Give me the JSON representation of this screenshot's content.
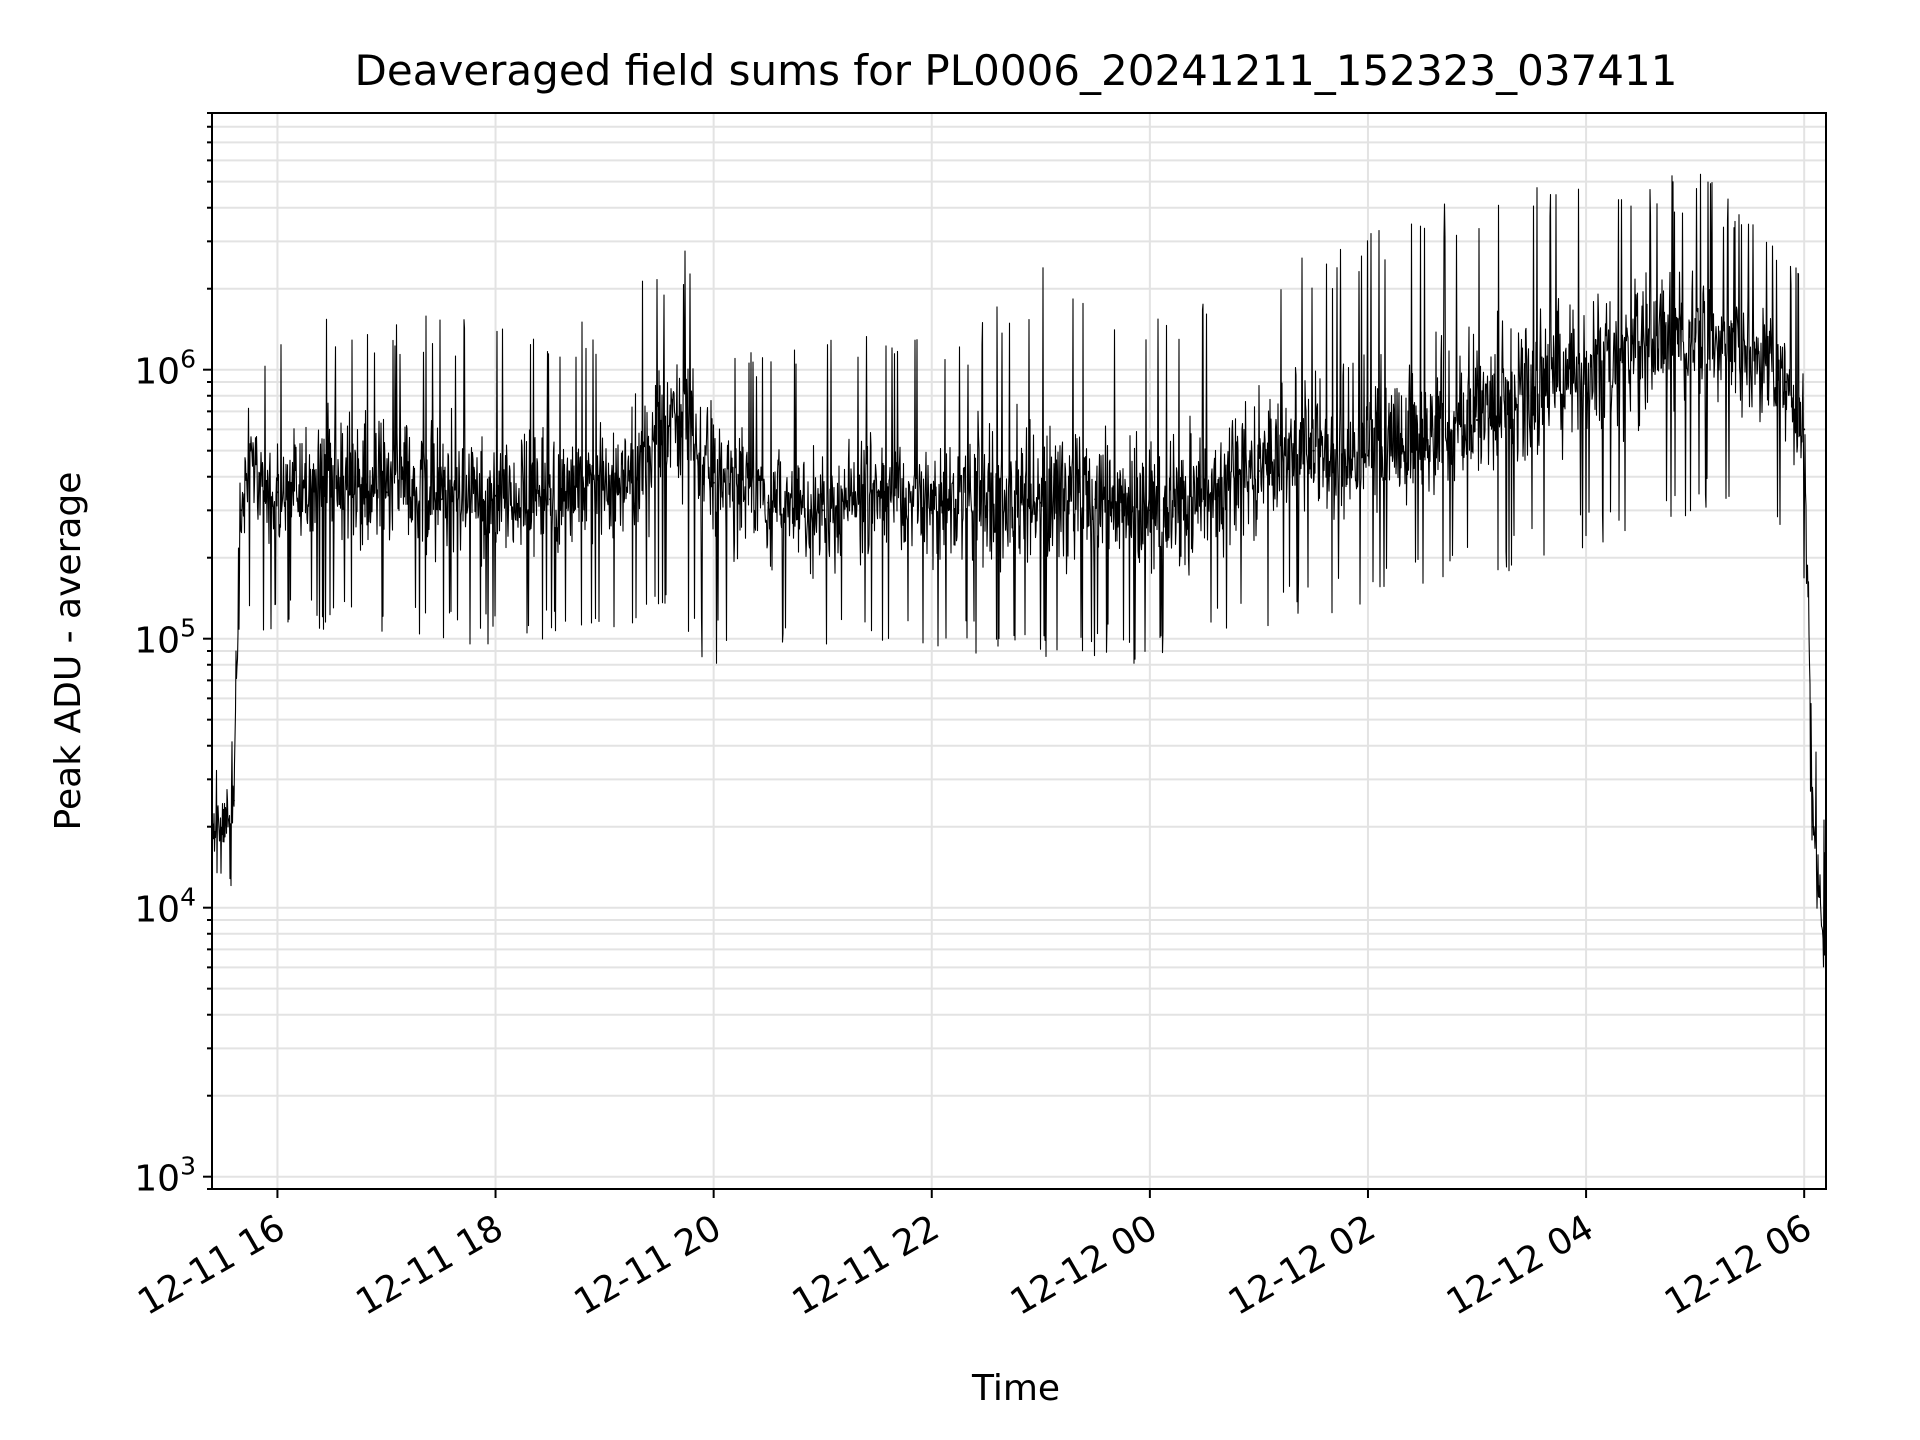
{
  "chart_data": {
    "type": "line",
    "title": "Deaveraged field sums for PL0006_20241211_152323_037411",
    "xlabel": "Time",
    "ylabel": "Peak ADU - average",
    "yscale": "log",
    "ylim": [
      900,
      9000000
    ],
    "xlim": [
      "2024-12-11 15:24",
      "2024-12-12 06:12"
    ],
    "grid": true,
    "line_color": "#000000",
    "x_ticks": [
      "2024-12-11 16:00",
      "2024-12-11 18:00",
      "2024-12-11 20:00",
      "2024-12-11 22:00",
      "2024-12-12 00:00",
      "2024-12-12 02:00",
      "2024-12-12 04:00",
      "2024-12-12 06:00"
    ],
    "x_tick_labels": [
      "12-11 16",
      "12-11 18",
      "12-11 20",
      "12-11 22",
      "12-12 00",
      "12-12 02",
      "12-12 04",
      "12-12 06"
    ],
    "y_ticks": [
      {
        "value": 1000,
        "base": "10",
        "exp": "3"
      },
      {
        "value": 10000,
        "base": "10",
        "exp": "4"
      },
      {
        "value": 100000,
        "base": "10",
        "exp": "5"
      },
      {
        "value": 1000000,
        "base": "10",
        "exp": "6"
      }
    ],
    "series": [
      {
        "x": [
          "2024-12-11 15:24",
          "2024-12-11 15:30",
          "2024-12-11 15:36",
          "2024-12-11 15:40",
          "2024-12-11 15:45",
          "2024-12-11 15:50",
          "2024-12-11 16:00",
          "2024-12-11 16:30",
          "2024-12-11 17:00",
          "2024-12-11 17:30",
          "2024-12-11 18:00",
          "2024-12-11 18:30",
          "2024-12-11 19:00",
          "2024-12-11 19:30",
          "2024-12-11 19:45",
          "2024-12-11 20:00",
          "2024-12-11 20:30",
          "2024-12-11 21:00",
          "2024-12-11 21:30",
          "2024-12-11 22:00",
          "2024-12-11 22:30",
          "2024-12-11 23:00",
          "2024-12-11 23:30",
          "2024-12-12 00:00",
          "2024-12-12 00:30",
          "2024-12-12 01:00",
          "2024-12-12 01:30",
          "2024-12-12 02:00",
          "2024-12-12 02:30",
          "2024-12-12 03:00",
          "2024-12-12 03:30",
          "2024-12-12 04:00",
          "2024-12-12 04:30",
          "2024-12-12 05:00",
          "2024-12-12 05:30",
          "2024-12-12 05:50",
          "2024-12-12 06:00",
          "2024-12-12 06:05",
          "2024-12-12 06:12"
        ],
        "y": [
          18000,
          20000,
          25000,
          300000,
          500000,
          400000,
          350000,
          380000,
          350000,
          330000,
          340000,
          330000,
          360000,
          500000,
          700000,
          380000,
          320000,
          300000,
          350000,
          330000,
          310000,
          320000,
          330000,
          300000,
          330000,
          420000,
          500000,
          480000,
          550000,
          650000,
          800000,
          1000000,
          1200000,
          1300000,
          1100000,
          900000,
          600000,
          20000,
          6000
        ],
        "spike_high": [
          30000,
          40000,
          50000,
          600000,
          800000,
          900000,
          1500000,
          1800000,
          1600000,
          1700000,
          1500000,
          1500000,
          1600000,
          2500000,
          3000000,
          1500000,
          1200000,
          1300000,
          1500000,
          1400000,
          1600000,
          2500000,
          1800000,
          1500000,
          2000000,
          2500000,
          3000000,
          3500000,
          4000000,
          4500000,
          5000000,
          5000000,
          5000000,
          5500000,
          4000000,
          3000000,
          2000000,
          50000,
          20000
        ],
        "spike_low": [
          10000,
          9000,
          12000,
          150000,
          120000,
          100000,
          100000,
          110000,
          100000,
          95000,
          90000,
          100000,
          100000,
          110000,
          90000,
          80000,
          90000,
          85000,
          95000,
          90000,
          85000,
          70000,
          80000,
          80000,
          90000,
          110000,
          120000,
          130000,
          150000,
          160000,
          180000,
          200000,
          250000,
          280000,
          300000,
          250000,
          150000,
          12000,
          5000
        ]
      }
    ]
  }
}
